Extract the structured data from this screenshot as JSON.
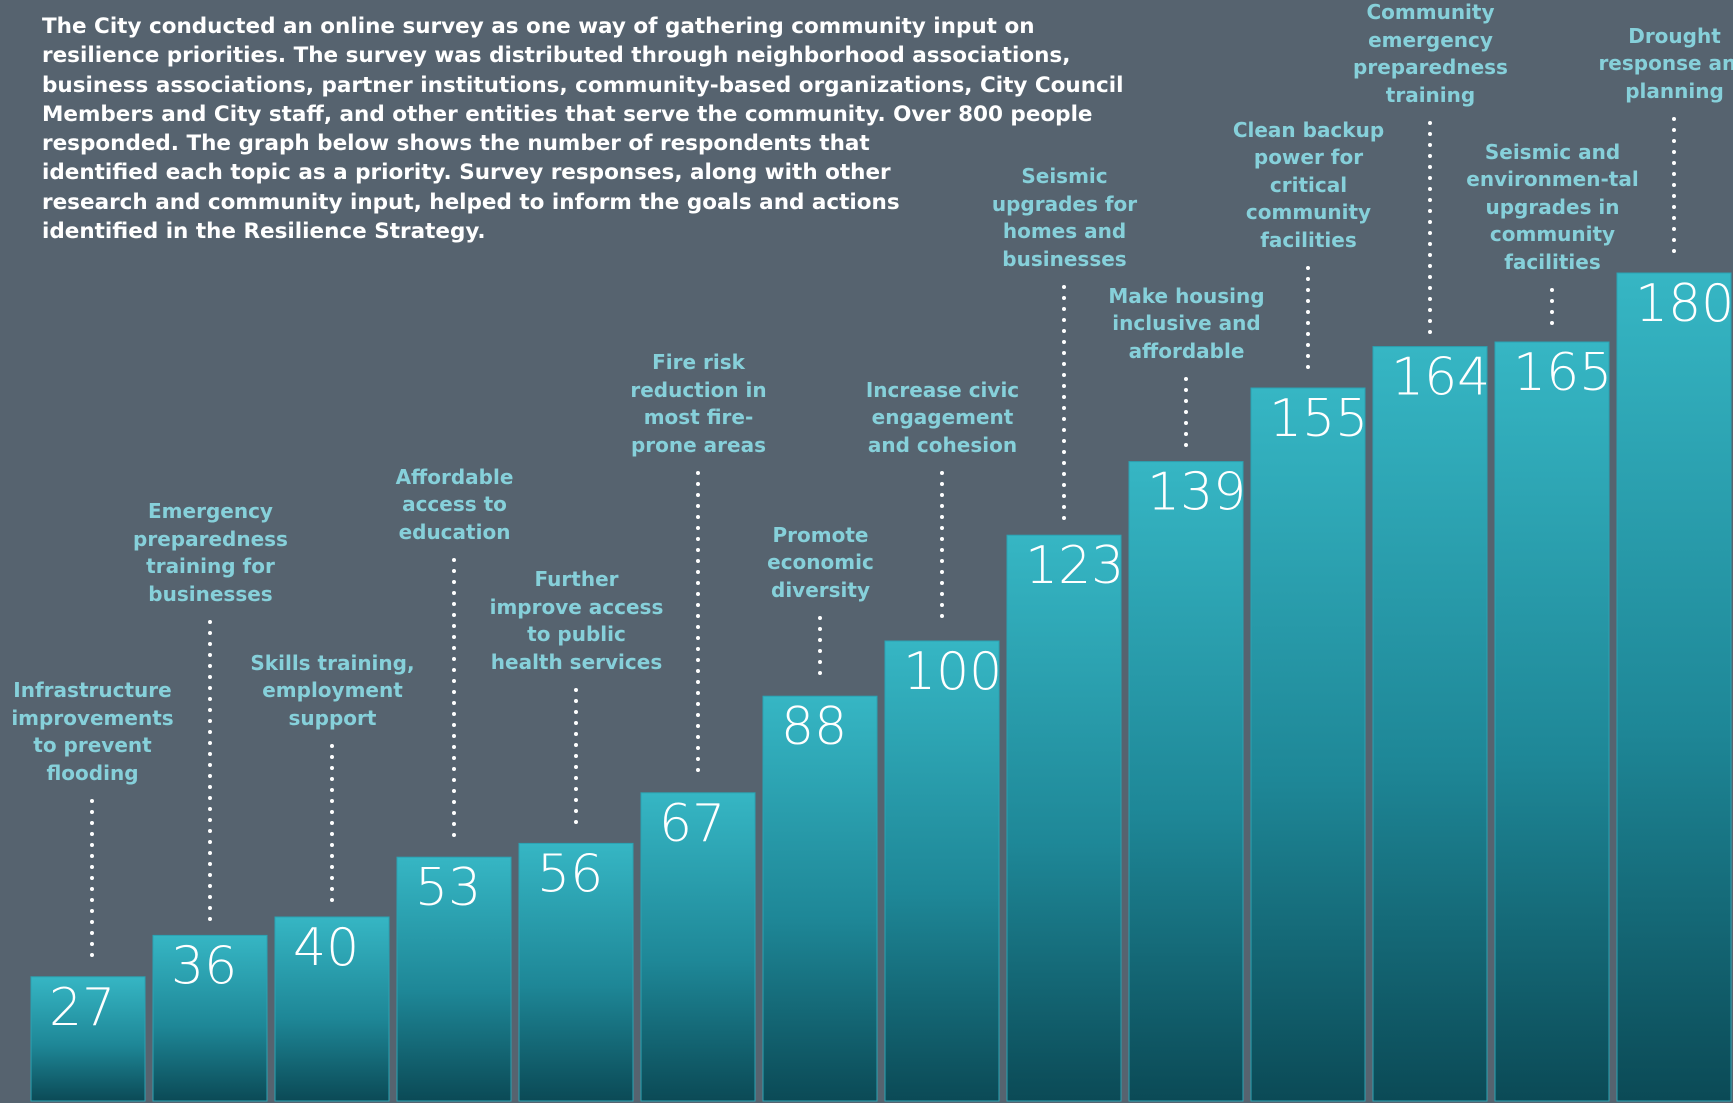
{
  "chart_data": {
    "type": "bar",
    "intro": "The City conducted an online survey as one way of gathering community input on resilience priorities. The survey was distributed through neighborhood associations, business associations, partner institutions, community-based organizations, City Council Members and City staff, and other entities that serve the community. Over 800 people responded. The graph below shows the number of respondents that identified each topic as a priority. Survey responses, along with other research and community input, helped to inform the goals and actions identified in the Resilience Strategy.",
    "categories": [
      "Infrastructure improvements to prevent flooding",
      "Emergency preparedness training for businesses",
      "Skills training, employment support",
      "Affordable access to education",
      "Further improve access to public health services",
      "Fire risk reduction in most fire-prone areas",
      "Promote economic diversity",
      "Increase civic engagement and cohesion",
      "Seismic upgrades for homes and businesses",
      "Make housing inclusive and affordable",
      "Clean backup power for critical community facilities",
      "Community emergency preparedness training",
      "Seismic and environmen-tal upgrades in community facilities",
      "Drought response and planning"
    ],
    "values": [
      27,
      36,
      40,
      53,
      56,
      67,
      88,
      100,
      123,
      139,
      155,
      164,
      165,
      180
    ],
    "color": "#2ba3b3"
  }
}
